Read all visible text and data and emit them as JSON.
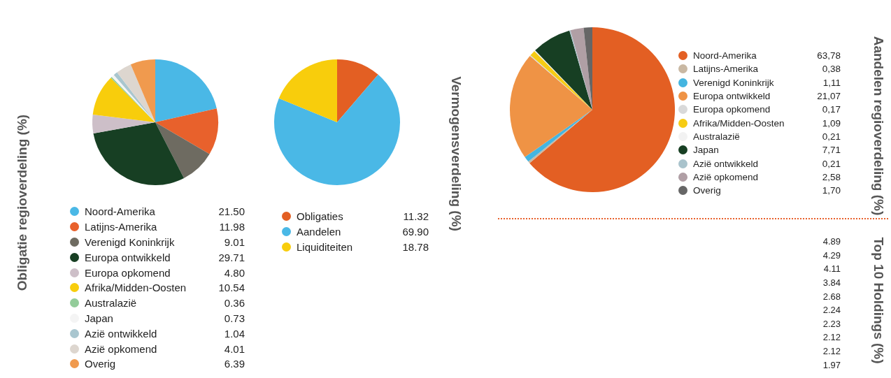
{
  "chart_data": [
    {
      "type": "pie",
      "title": "Obligatie regioverdeling (%)",
      "legend": "bottom",
      "categories": [
        "Noord-Amerika",
        "Latijns-Amerika",
        "Verenigd Koninkrijk",
        "Europa ontwikkeld",
        "Europa opkomend",
        "Afrika/Midden-Oosten",
        "Australazië",
        "Japan",
        "Azië ontwikkeld",
        "Azië opkomend",
        "Overig"
      ],
      "values": [
        21.5,
        11.98,
        9.01,
        29.71,
        4.8,
        10.54,
        0.36,
        0.73,
        1.04,
        4.01,
        6.39
      ],
      "value_labels": [
        "21.50",
        "11.98",
        "9.01",
        "29.71",
        "4.80",
        "10.54",
        "0.36",
        "0.73",
        "1.04",
        "4.01",
        "6.39"
      ],
      "colors": [
        "#4ab8e6",
        "#e8612c",
        "#6e6b61",
        "#173f23",
        "#cdbfc8",
        "#f8cd0c",
        "#93cc9a",
        "#f4f4f4",
        "#a9c6cf",
        "#ddd6cf",
        "#f09a4e"
      ]
    },
    {
      "type": "pie",
      "title": "Vermogensverdeling (%)",
      "legend": "bottom",
      "categories": [
        "Obligaties",
        "Aandelen",
        "Liquiditeiten"
      ],
      "values": [
        11.32,
        69.9,
        18.78
      ],
      "value_labels": [
        "11.32",
        "69.90",
        "18.78"
      ],
      "colors": [
        "#e35f23",
        "#4ab8e6",
        "#f8cd0c"
      ]
    },
    {
      "type": "pie",
      "title": "Aandelen regioverdeling (%)",
      "legend": "right",
      "categories": [
        "Noord-Amerika",
        "Latijns-Amerika",
        "Verenigd Koninkrijk",
        "Europa ontwikkeld",
        "Europa opkomend",
        "Afrika/Midden-Oosten",
        "Australazië",
        "Japan",
        "Azië ontwikkeld",
        "Azië opkomend",
        "Overig"
      ],
      "values": [
        63.78,
        0.38,
        1.11,
        21.07,
        0.17,
        1.09,
        0.21,
        7.71,
        0.21,
        2.58,
        1.7
      ],
      "value_labels": [
        "63,78",
        "0,38",
        "1,11",
        "21,07",
        "0,17",
        "1,09",
        "0,21",
        "7,71",
        "0,21",
        "2,58",
        "1,70"
      ],
      "colors": [
        "#e35f23",
        "#c9b8a3",
        "#45b5e0",
        "#ef9345",
        "#d9d9d9",
        "#f6cc14",
        "#f2f2f2",
        "#173f23",
        "#a9c3cc",
        "#b09fa5",
        "#666666"
      ]
    },
    {
      "type": "other",
      "title": "Top 10 Holdings (%)",
      "categories": [
        null,
        null,
        null,
        null,
        null,
        null,
        null,
        null,
        null,
        null
      ],
      "values": [
        4.89,
        4.29,
        4.11,
        3.84,
        2.68,
        2.24,
        2.23,
        2.12,
        2.12,
        1.97
      ],
      "value_labels": [
        "4.89",
        "4.29",
        "4.11",
        "3.84",
        "2.68",
        "2.24",
        "2.23",
        "2.12",
        "2.12",
        "1.97"
      ]
    }
  ]
}
